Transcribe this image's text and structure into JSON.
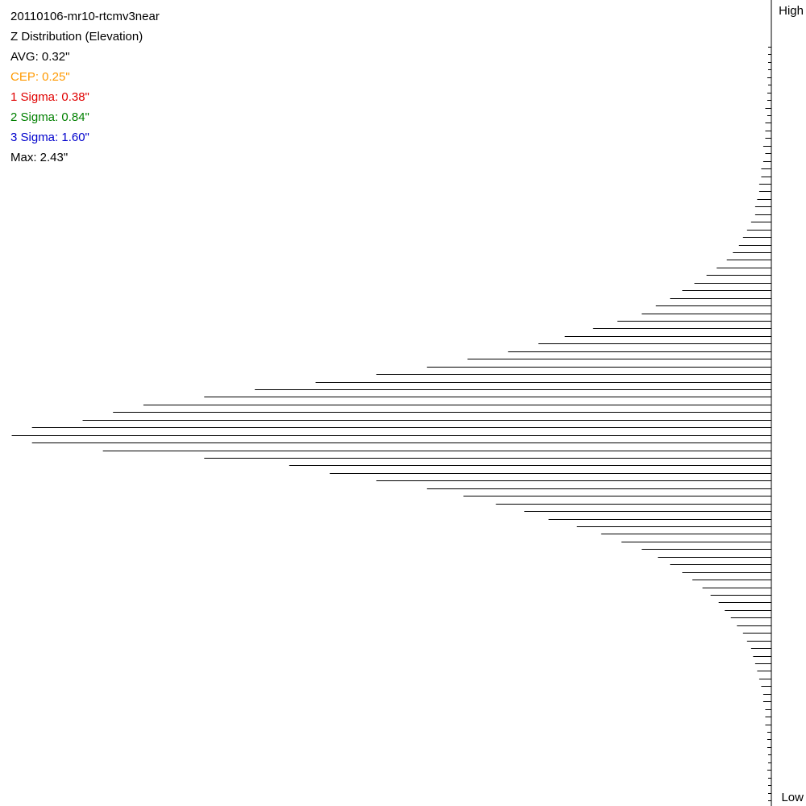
{
  "stats": {
    "title": "20110106-mr10-rtcmv3near",
    "subtitle": "Z Distribution (Elevation)",
    "avg": "AVG: 0.32\"",
    "cep": "CEP: 0.25\"",
    "sigma1": "1 Sigma: 0.38\"",
    "sigma2": "2 Sigma: 0.84\"",
    "sigma3": "3 Sigma: 1.60\"",
    "max": "Max: 2.43\""
  },
  "colors": {
    "cep": "#ff9900",
    "sigma1": "#e00000",
    "sigma2": "#008000",
    "sigma3": "#0000cc",
    "text": "#000000",
    "bars": "#000000"
  },
  "axis": {
    "high_label": "High",
    "low_label": "Low"
  },
  "chart_data": {
    "type": "bar",
    "orientation": "horizontal-histogram",
    "value_axis": "counts (relative)",
    "category_order": "top = High, bottom = Low",
    "values": [
      0,
      1,
      1,
      1,
      2,
      1,
      2,
      2,
      3,
      2,
      3,
      3,
      3,
      4,
      3,
      4,
      5,
      5,
      6,
      6,
      7,
      8,
      8,
      10,
      12,
      14,
      16,
      19,
      22,
      27,
      32,
      38,
      44,
      50,
      57,
      64,
      76,
      88,
      102,
      115,
      130,
      150,
      170,
      195,
      225,
      255,
      280,
      310,
      325,
      340,
      365,
      375,
      365,
      330,
      280,
      238,
      218,
      195,
      170,
      152,
      136,
      122,
      110,
      96,
      84,
      74,
      64,
      56,
      50,
      44,
      39,
      34,
      30,
      26,
      23,
      20,
      17,
      14,
      12,
      10,
      9,
      8,
      7,
      6,
      5,
      4,
      4,
      3,
      3,
      3,
      2,
      2,
      2,
      1,
      1,
      2,
      1,
      1,
      1,
      0
    ],
    "x_max": 380,
    "grid": false,
    "legend": "none"
  }
}
